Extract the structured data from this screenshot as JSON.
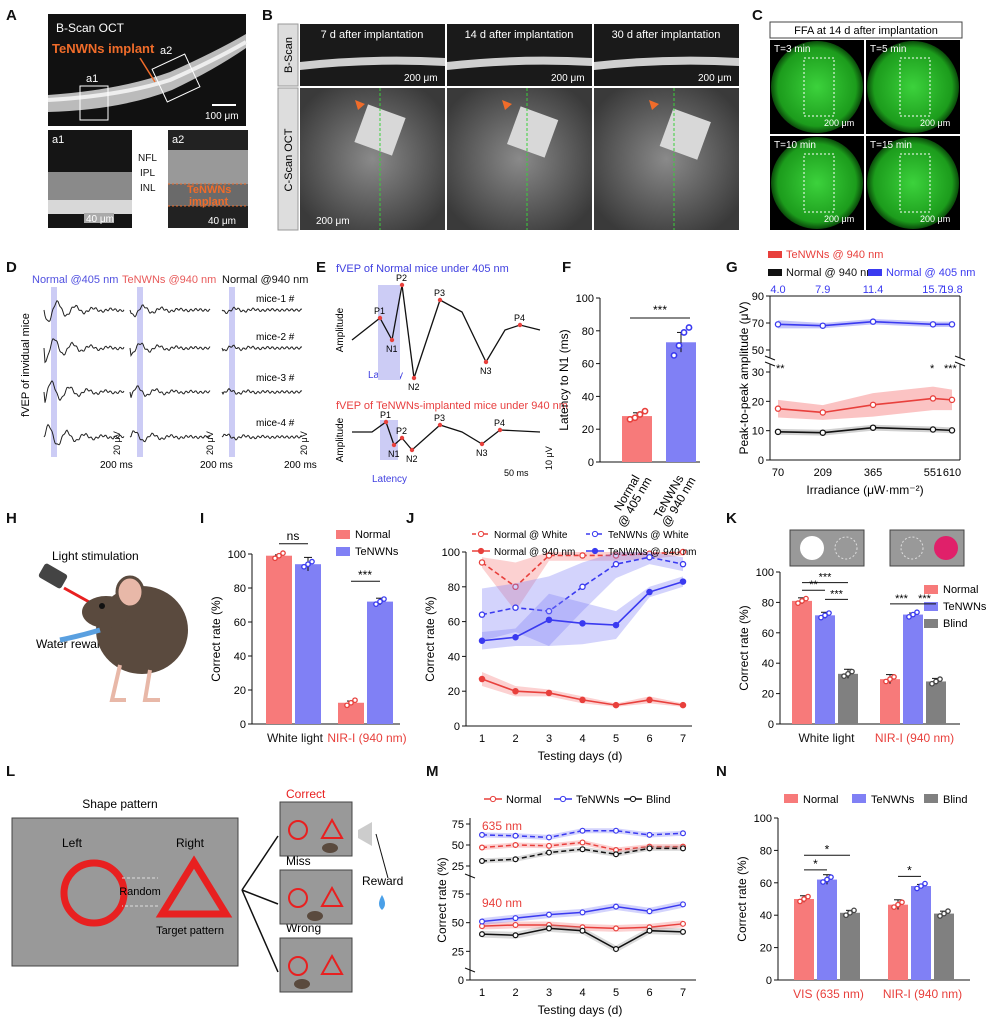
{
  "panels": {
    "a": {
      "label": "A",
      "title": "B-Scan OCT",
      "implant": "TeNWNs implant",
      "roi1": "a1",
      "roi2": "a2",
      "scale": "100 μm",
      "a1_label": "a1",
      "a2_label": "a2",
      "layers": [
        "NFL",
        "IPL",
        "INL"
      ],
      "zoom_implant": [
        "TeNWNs",
        "implant"
      ],
      "zoom_scale1": "40 μm",
      "zoom_scale2": "40 μm"
    },
    "b": {
      "label": "B",
      "row_b": "B-Scan",
      "row_c": "C-Scan OCT",
      "cols": [
        "7 d after implantation",
        "14 d after implantation",
        "30 d after implantation"
      ],
      "scale_small": "200 μm",
      "scale_large": "200 μm"
    },
    "c": {
      "label": "C",
      "title": "FFA at 14 d after implantation",
      "times": [
        "T=3 min",
        "T=5 min",
        "T=10 min",
        "T=15 min"
      ],
      "scale": "200 μm"
    },
    "d": {
      "label": "D",
      "groups": [
        "Normal @405 nm",
        "TeNWNs @940 nm",
        "Normal @940 nm"
      ],
      "mice": [
        "mice-1 #",
        "mice-2 #",
        "mice-3 #",
        "mice-4 #"
      ],
      "ylabel": "fVEP of invidual mice",
      "scale_y": "20 μV",
      "scale_x": "200 ms"
    },
    "e": {
      "label": "E",
      "title1": "fVEP of Normal mice under 405 nm",
      "title2": "fVEP of TeNWNs-implanted mice under 940 nm",
      "ylabel": "Amplitude",
      "latency": "Latency",
      "peaks1": [
        "P1",
        "N1",
        "P2",
        "N2",
        "P3",
        "N3",
        "P4"
      ],
      "peaks2": [
        "P1",
        "N1",
        "P2",
        "N2",
        "P3",
        "N3",
        "P4"
      ],
      "scale_y": "10 μV",
      "scale_x": "50 ms"
    },
    "f": {
      "label": "F"
    },
    "g": {
      "label": "G"
    },
    "h": {
      "label": "H",
      "stim": "Light stimulation",
      "reward": "Water reward"
    },
    "i": {
      "label": "I"
    },
    "j": {
      "label": "J"
    },
    "k": {
      "label": "K"
    },
    "l": {
      "label": "L",
      "title": "Shape pattern",
      "left": "Left",
      "right": "Right",
      "random": "Random",
      "target": "Target pattern",
      "outcomes": [
        "Correct",
        "Miss",
        "Wrong"
      ],
      "reward": "Reward"
    },
    "m": {
      "label": "M"
    },
    "n": {
      "label": "N"
    }
  },
  "colors": {
    "red": "#e8403c",
    "pink": "#f77a7a",
    "blue": "#3a3af0",
    "lblue": "#8080f5",
    "gray": "#808080",
    "green": "#28c428",
    "orange": "#f06c2a"
  },
  "chart_data": [
    {
      "id": "F",
      "type": "bar",
      "ylabel": "Latency to N1 (ms)",
      "ylim": [
        0,
        100
      ],
      "yticks": [
        0,
        20,
        40,
        60,
        80,
        100
      ],
      "categories": [
        "Normal @ 405 nm",
        "TeNWNs @ 940 nm"
      ],
      "values": [
        28,
        73
      ],
      "errors": [
        2,
        6
      ],
      "points": [
        [
          26,
          27,
          29,
          31
        ],
        [
          65,
          71,
          79,
          82
        ]
      ],
      "sig": "***"
    },
    {
      "id": "G",
      "type": "line",
      "ylabel": "Peak-to-peak amplitude (μV)",
      "xlabel": "Irradiance (μW·mm⁻²)",
      "x": [
        70,
        209,
        365,
        551,
        610
      ],
      "x_top": [
        4.0,
        7.9,
        11.4,
        15.7,
        19.8
      ],
      "legend": [
        "TeNWNs @ 940 nm",
        "Normal @ 940 nm",
        "Normal @ 405 nm"
      ],
      "series": [
        {
          "name": "TeNWNs @ 940 nm",
          "values": [
            17.5,
            16.2,
            18.8,
            21.0,
            20.5
          ],
          "band": [
            3,
            2.5,
            4,
            4,
            3.5
          ]
        },
        {
          "name": "Normal @ 940 nm",
          "values": [
            9.6,
            9.3,
            11.0,
            10.4,
            10.1
          ],
          "band": [
            1,
            1,
            1,
            1,
            1
          ]
        },
        {
          "name": "Normal @ 405 nm",
          "values": [
            69,
            68,
            71,
            69,
            69
          ],
          "band": [
            3,
            2,
            2,
            2,
            2
          ]
        }
      ],
      "yticks_low": [
        0,
        10,
        20,
        30
      ],
      "yticks_high": [
        50,
        70,
        90
      ],
      "sig_labels": [
        "**",
        "*",
        "***"
      ]
    },
    {
      "id": "I",
      "type": "bar",
      "ylabel": "Correct rate (%)",
      "ylim": [
        0,
        100
      ],
      "yticks": [
        0,
        20,
        40,
        60,
        80,
        100
      ],
      "categories": [
        "White light",
        "NIR-I (940 nm)"
      ],
      "legend": [
        "Normal",
        "TeNWNs"
      ],
      "series": [
        {
          "name": "Normal",
          "values": [
            99,
            12.5
          ],
          "errors": [
            0.5,
            1
          ]
        },
        {
          "name": "TeNWNs",
          "values": [
            94,
            72
          ],
          "errors": [
            4,
            2
          ]
        }
      ],
      "sig": [
        "ns",
        "***"
      ]
    },
    {
      "id": "J",
      "type": "line",
      "ylabel": "Correct rate (%)",
      "xlabel": "Testing days (d)",
      "x": [
        1,
        2,
        3,
        4,
        5,
        6,
        7
      ],
      "ylim": [
        0,
        100
      ],
      "yticks": [
        0,
        20,
        40,
        60,
        80,
        100
      ],
      "legend": [
        "Normal @ White",
        "TeNWNs @ White",
        "Normal @ 940 nm",
        "TeNWNs @ 940 nm"
      ],
      "series": [
        {
          "name": "Normal @ White",
          "values": [
            94,
            80,
            98,
            98,
            98,
            99,
            100
          ]
        },
        {
          "name": "TeNWNs @ White",
          "values": [
            64,
            68,
            66,
            80,
            93,
            97,
            93
          ]
        },
        {
          "name": "Normal @ 940 nm",
          "values": [
            27,
            20,
            19,
            15,
            12,
            15,
            12
          ]
        },
        {
          "name": "TeNWNs @ 940 nm",
          "values": [
            49,
            51,
            61,
            59,
            58,
            77,
            83
          ]
        }
      ]
    },
    {
      "id": "K",
      "type": "bar",
      "ylabel": "Correct rate (%)",
      "ylim": [
        0,
        100
      ],
      "yticks": [
        0,
        20,
        40,
        60,
        80,
        100
      ],
      "categories": [
        "White light",
        "NIR-I (940 nm)"
      ],
      "legend": [
        "Normal",
        "TeNWNs",
        "Blind"
      ],
      "series": [
        {
          "name": "Normal",
          "values": [
            81,
            29.5
          ],
          "errors": [
            2,
            3
          ]
        },
        {
          "name": "TeNWNs",
          "values": [
            71.5,
            72
          ],
          "errors": [
            2,
            1
          ]
        },
        {
          "name": "Blind",
          "values": [
            33,
            28
          ],
          "errors": [
            3,
            2
          ]
        }
      ],
      "sig": [
        "**",
        "***",
        "***",
        "***",
        "***"
      ]
    },
    {
      "id": "M",
      "type": "line",
      "ylabel": "Correct rate (%)",
      "xlabel": "Testing days (d)",
      "x": [
        1,
        2,
        3,
        4,
        5,
        6,
        7
      ],
      "legend": [
        "Normal",
        "TeNWNs",
        "Blind"
      ],
      "subtitles": [
        "635 nm",
        "940 nm"
      ],
      "yticks_top": [
        25,
        50,
        75
      ],
      "yticks_bottom": [
        0,
        25,
        50,
        75
      ],
      "series": [
        {
          "name": "Normal 635 nm",
          "values": [
            47,
            50,
            49,
            53,
            44,
            48,
            48
          ]
        },
        {
          "name": "TeNWNs 635 nm",
          "values": [
            62,
            61,
            59,
            67,
            67,
            62,
            64
          ]
        },
        {
          "name": "Blind 635 nm",
          "values": [
            31,
            33,
            41,
            45,
            39,
            46,
            46
          ]
        },
        {
          "name": "Normal 940 nm",
          "values": [
            47,
            48,
            48,
            46,
            45,
            46,
            49
          ]
        },
        {
          "name": "TeNWNs 940 nm",
          "values": [
            51,
            54,
            57,
            59,
            64,
            60,
            66
          ]
        },
        {
          "name": "Blind 940 nm",
          "values": [
            40,
            39,
            45,
            43,
            27,
            43,
            42
          ]
        }
      ]
    },
    {
      "id": "N",
      "type": "bar",
      "ylabel": "Correct rate (%)",
      "ylim": [
        0,
        100
      ],
      "yticks": [
        0,
        20,
        40,
        60,
        80,
        100
      ],
      "categories": [
        "VIS (635 nm)",
        "NIR-I (940 nm)"
      ],
      "legend": [
        "Normal",
        "TeNWNs",
        "Blind"
      ],
      "series": [
        {
          "name": "Normal",
          "values": [
            50,
            46.5
          ],
          "errors": [
            2,
            3
          ]
        },
        {
          "name": "TeNWNs",
          "values": [
            62,
            58
          ],
          "errors": [
            3,
            1
          ]
        },
        {
          "name": "Blind",
          "values": [
            41.5,
            41
          ],
          "errors": [
            1.5,
            1.5
          ]
        }
      ],
      "sig": [
        "*",
        "*",
        "*"
      ]
    }
  ]
}
